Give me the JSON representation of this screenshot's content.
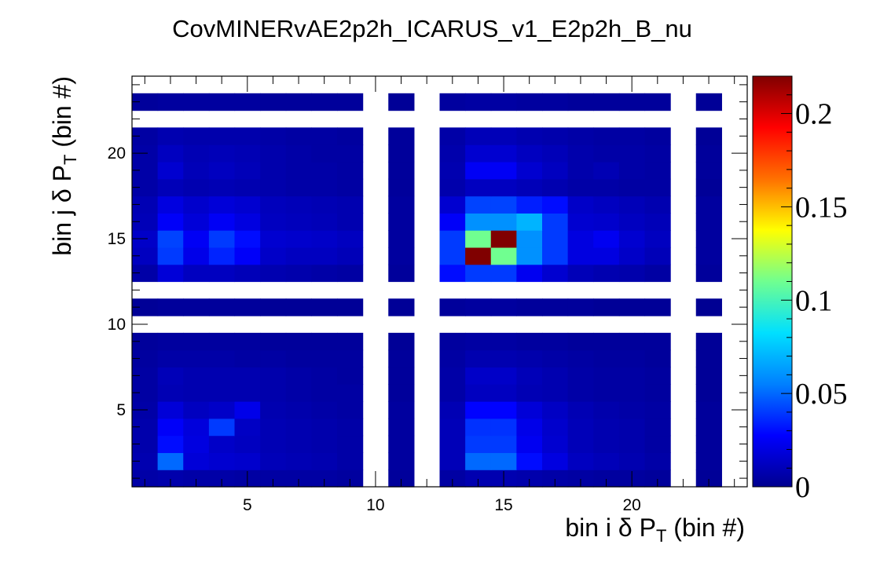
{
  "chart_data": {
    "type": "heatmap",
    "title": "CovMINERvAE2p2h_ICARUS_v1_E2p2h_B_nu",
    "xlabel": "bin i δ P_T (bin #)",
    "ylabel": "bin j δ P_T (bin #)",
    "xlabel_parts": {
      "pre": "bin i  δ P",
      "sub": "T",
      "post": " (bin #)"
    },
    "ylabel_parts": {
      "pre": "bin j  δ P",
      "sub": "T",
      "post": " (bin #)"
    },
    "n_bins_x": 24,
    "n_bins_y": 24,
    "xlim": [
      0.5,
      24.5
    ],
    "ylim": [
      0.5,
      24.5
    ],
    "zlim": [
      0,
      0.22
    ],
    "x_ticks": [
      5,
      10,
      15,
      20
    ],
    "y_ticks": [
      5,
      10,
      15,
      20
    ],
    "z_ticks": [
      0,
      0.05,
      0.1,
      0.15,
      0.2
    ],
    "z_tick_labels": [
      "0",
      "0.05",
      "0.1",
      "0.15",
      "0.2"
    ],
    "empty_bins": [
      10,
      12,
      22,
      24
    ],
    "colormap": [
      "#00008f",
      "#0000ff",
      "#0080ff",
      "#00e0ff",
      "#70ff90",
      "#ffff00",
      "#ff7000",
      "#ff0000",
      "#800000"
    ],
    "values": [
      [
        0.006,
        0.007,
        0.006,
        0.006,
        0.005,
        0.005,
        0.005,
        0.005,
        0.004,
        0,
        0.003,
        0,
        0.005,
        0.008,
        0.008,
        0.007,
        0.006,
        0.005,
        0.004,
        0.004,
        0.003,
        0,
        0.002,
        0
      ],
      [
        0.008,
        0.05,
        0.018,
        0.016,
        0.015,
        0.01,
        0.009,
        0.008,
        0.006,
        0,
        0.004,
        0,
        0.01,
        0.05,
        0.05,
        0.03,
        0.02,
        0.012,
        0.01,
        0.008,
        0.006,
        0,
        0.003,
        0
      ],
      [
        0.007,
        0.03,
        0.02,
        0.014,
        0.012,
        0.009,
        0.008,
        0.007,
        0.006,
        0,
        0.004,
        0,
        0.01,
        0.04,
        0.04,
        0.024,
        0.016,
        0.01,
        0.008,
        0.007,
        0.005,
        0,
        0.003,
        0
      ],
      [
        0.007,
        0.026,
        0.019,
        0.04,
        0.013,
        0.009,
        0.008,
        0.007,
        0.006,
        0,
        0.004,
        0,
        0.01,
        0.038,
        0.038,
        0.022,
        0.015,
        0.01,
        0.008,
        0.007,
        0.005,
        0,
        0.003,
        0
      ],
      [
        0.006,
        0.018,
        0.012,
        0.014,
        0.022,
        0.008,
        0.007,
        0.006,
        0.005,
        0,
        0.004,
        0,
        0.009,
        0.028,
        0.028,
        0.018,
        0.013,
        0.009,
        0.007,
        0.006,
        0.005,
        0,
        0.003,
        0
      ],
      [
        0.005,
        0.009,
        0.008,
        0.008,
        0.008,
        0.007,
        0.006,
        0.005,
        0.005,
        0,
        0.003,
        0,
        0.006,
        0.012,
        0.012,
        0.009,
        0.008,
        0.006,
        0.005,
        0.005,
        0.004,
        0,
        0.002,
        0
      ],
      [
        0.005,
        0.01,
        0.008,
        0.008,
        0.008,
        0.007,
        0.006,
        0.005,
        0.004,
        0,
        0.003,
        0,
        0.006,
        0.014,
        0.014,
        0.01,
        0.008,
        0.006,
        0.005,
        0.005,
        0.004,
        0,
        0.002,
        0
      ],
      [
        0.004,
        0.006,
        0.006,
        0.006,
        0.005,
        0.005,
        0.004,
        0.004,
        0.004,
        0,
        0.003,
        0,
        0.005,
        0.008,
        0.008,
        0.007,
        0.006,
        0.005,
        0.004,
        0.004,
        0.003,
        0,
        0.002,
        0
      ],
      [
        0.003,
        0.004,
        0.004,
        0.004,
        0.004,
        0.003,
        0.003,
        0.003,
        0.003,
        0,
        0.002,
        0,
        0.004,
        0.005,
        0.005,
        0.004,
        0.004,
        0.003,
        0.003,
        0.003,
        0.003,
        0,
        0.002,
        0
      ],
      [
        0,
        0,
        0,
        0,
        0,
        0,
        0,
        0,
        0,
        0,
        0,
        0,
        0,
        0,
        0,
        0,
        0,
        0,
        0,
        0,
        0,
        0,
        0,
        0
      ],
      [
        0.002,
        0.003,
        0.003,
        0.003,
        0.003,
        0.002,
        0.002,
        0.002,
        0.002,
        0,
        0.002,
        0,
        0.003,
        0.004,
        0.004,
        0.003,
        0.003,
        0.003,
        0.002,
        0.002,
        0.002,
        0,
        0.001,
        0
      ],
      [
        0,
        0,
        0,
        0,
        0,
        0,
        0,
        0,
        0,
        0,
        0,
        0,
        0,
        0,
        0,
        0,
        0,
        0,
        0,
        0,
        0,
        0,
        0,
        0
      ],
      [
        0.006,
        0.018,
        0.012,
        0.012,
        0.01,
        0.008,
        0.007,
        0.006,
        0.005,
        0,
        0.003,
        0,
        0.03,
        0.04,
        0.04,
        0.024,
        0.016,
        0.01,
        0.008,
        0.007,
        0.005,
        0,
        0.003,
        0
      ],
      [
        0.012,
        0.04,
        0.022,
        0.035,
        0.026,
        0.014,
        0.012,
        0.012,
        0.01,
        0,
        0.004,
        0,
        0.04,
        0.22,
        0.11,
        0.06,
        0.04,
        0.02,
        0.02,
        0.014,
        0.01,
        0,
        0.004,
        0
      ],
      [
        0.014,
        0.042,
        0.025,
        0.04,
        0.03,
        0.016,
        0.015,
        0.014,
        0.012,
        0,
        0.004,
        0,
        0.04,
        0.11,
        0.22,
        0.06,
        0.04,
        0.02,
        0.024,
        0.016,
        0.012,
        0,
        0.004,
        0
      ],
      [
        0.01,
        0.026,
        0.018,
        0.025,
        0.02,
        0.012,
        0.011,
        0.01,
        0.008,
        0,
        0.004,
        0,
        0.026,
        0.06,
        0.06,
        0.07,
        0.04,
        0.016,
        0.015,
        0.012,
        0.01,
        0,
        0.004,
        0
      ],
      [
        0.009,
        0.02,
        0.015,
        0.018,
        0.016,
        0.011,
        0.01,
        0.009,
        0.008,
        0,
        0.004,
        0,
        0.016,
        0.042,
        0.042,
        0.034,
        0.03,
        0.014,
        0.012,
        0.01,
        0.008,
        0,
        0.004,
        0
      ],
      [
        0.006,
        0.01,
        0.008,
        0.009,
        0.008,
        0.007,
        0.006,
        0.006,
        0.005,
        0,
        0.003,
        0,
        0.007,
        0.012,
        0.012,
        0.01,
        0.008,
        0.006,
        0.006,
        0.005,
        0.005,
        0,
        0.002,
        0
      ],
      [
        0.006,
        0.016,
        0.01,
        0.012,
        0.01,
        0.007,
        0.006,
        0.006,
        0.005,
        0,
        0.003,
        0,
        0.008,
        0.025,
        0.025,
        0.016,
        0.012,
        0.007,
        0.009,
        0.006,
        0.005,
        0,
        0.003,
        0
      ],
      [
        0.006,
        0.012,
        0.009,
        0.01,
        0.009,
        0.007,
        0.006,
        0.005,
        0.005,
        0,
        0.003,
        0,
        0.007,
        0.016,
        0.016,
        0.012,
        0.01,
        0.007,
        0.006,
        0.006,
        0.005,
        0,
        0.003,
        0
      ],
      [
        0.005,
        0.008,
        0.007,
        0.007,
        0.007,
        0.006,
        0.005,
        0.005,
        0.004,
        0,
        0.003,
        0,
        0.006,
        0.01,
        0.01,
        0.008,
        0.007,
        0.006,
        0.005,
        0.005,
        0.004,
        0,
        0.002,
        0
      ],
      [
        0,
        0,
        0,
        0,
        0,
        0,
        0,
        0,
        0,
        0,
        0,
        0,
        0,
        0,
        0,
        0,
        0,
        0,
        0,
        0,
        0,
        0,
        0,
        0
      ],
      [
        0.003,
        0.004,
        0.004,
        0.004,
        0.004,
        0.003,
        0.003,
        0.003,
        0.003,
        0,
        0.002,
        0,
        0.004,
        0.005,
        0.005,
        0.004,
        0.004,
        0.003,
        0.003,
        0.003,
        0.003,
        0,
        0.002,
        0
      ],
      [
        0,
        0,
        0,
        0,
        0,
        0,
        0,
        0,
        0,
        0,
        0,
        0,
        0,
        0,
        0,
        0,
        0,
        0,
        0,
        0,
        0,
        0,
        0,
        0
      ]
    ]
  }
}
